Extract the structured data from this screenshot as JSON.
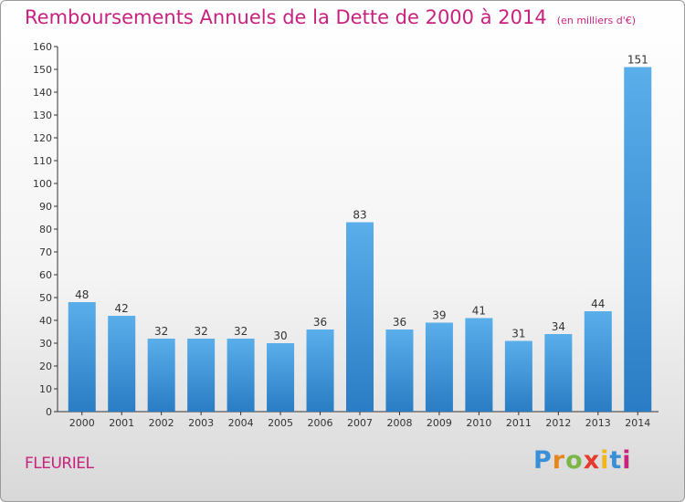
{
  "title": "Remboursements Annuels de la Dette de 2000 à 2014",
  "unit_note": "(en milliers d'€)",
  "commune": "FLEURIEL",
  "logo": {
    "letters": [
      "P",
      "r",
      "o",
      "x",
      "i",
      "t",
      "i"
    ],
    "colors": [
      "#3a8fd6",
      "#e8861e",
      "#7ab648",
      "#e63a2e",
      "#f2b51c",
      "#3a8fd6",
      "#c8227f"
    ]
  },
  "colors": {
    "title": "#c8227f",
    "bar": "#4a9fe0",
    "bar_dark": "#2a7fc6"
  },
  "chart_data": {
    "type": "bar",
    "categories": [
      "2000",
      "2001",
      "2002",
      "2003",
      "2004",
      "2005",
      "2006",
      "2007",
      "2008",
      "2009",
      "2010",
      "2011",
      "2012",
      "2013",
      "2014"
    ],
    "values": [
      48,
      42,
      32,
      32,
      32,
      30,
      36,
      83,
      36,
      39,
      41,
      31,
      34,
      44,
      151
    ],
    "title": "Remboursements Annuels de la Dette de 2000 à 2014",
    "ylim": [
      0,
      160
    ],
    "yticks": [
      0,
      10,
      20,
      30,
      40,
      50,
      60,
      70,
      80,
      90,
      100,
      110,
      120,
      130,
      140,
      150,
      160
    ],
    "grid": false,
    "legend": "none"
  }
}
